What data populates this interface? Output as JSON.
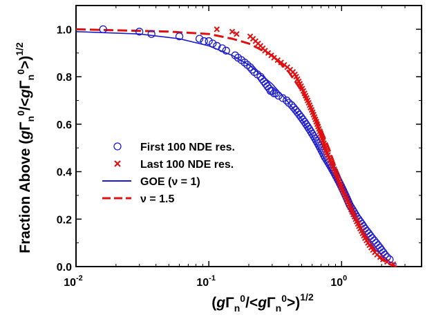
{
  "chart_data": {
    "type": "scatter",
    "x_scale": "log",
    "xlim": [
      0.01,
      4.0
    ],
    "ylim": [
      0.0,
      1.1
    ],
    "xlabel": "(gΓn0/<gΓn0>)1/2",
    "ylabel": "Fraction Above (gΓn0/<gΓn0>)1/2",
    "x_ticks": [
      {
        "value": 0.01,
        "base": "10",
        "exp": "-2"
      },
      {
        "value": 0.1,
        "base": "10",
        "exp": "-1"
      },
      {
        "value": 1.0,
        "base": "10",
        "exp": "0"
      }
    ],
    "y_ticks": [
      "0.0",
      "0.2",
      "0.4",
      "0.6",
      "0.8",
      "1.0"
    ],
    "legend_position": "center-left",
    "series": [
      {
        "name": "First 100 NDE res.",
        "marker": "circle",
        "color": "#1a1acc",
        "points": [
          [
            0.016,
            1.0
          ],
          [
            0.03,
            0.99
          ],
          [
            0.037,
            0.98
          ],
          [
            0.06,
            0.97
          ],
          [
            0.085,
            0.96
          ],
          [
            0.092,
            0.95
          ],
          [
            0.1,
            0.95
          ],
          [
            0.107,
            0.94
          ],
          [
            0.115,
            0.93
          ],
          [
            0.126,
            0.92
          ],
          [
            0.135,
            0.91
          ],
          [
            0.158,
            0.89
          ],
          [
            0.166,
            0.88
          ],
          [
            0.176,
            0.87
          ],
          [
            0.186,
            0.86
          ],
          [
            0.195,
            0.85
          ],
          [
            0.205,
            0.84
          ],
          [
            0.212,
            0.83
          ],
          [
            0.22,
            0.82
          ],
          [
            0.232,
            0.81
          ],
          [
            0.245,
            0.8
          ],
          [
            0.252,
            0.79
          ],
          [
            0.26,
            0.78
          ],
          [
            0.268,
            0.77
          ],
          [
            0.276,
            0.76
          ],
          [
            0.285,
            0.75
          ],
          [
            0.292,
            0.74
          ],
          [
            0.3,
            0.74
          ],
          [
            0.31,
            0.73
          ],
          [
            0.32,
            0.73
          ],
          [
            0.335,
            0.72
          ],
          [
            0.36,
            0.71
          ],
          [
            0.385,
            0.7
          ],
          [
            0.4,
            0.69
          ],
          [
            0.42,
            0.68
          ],
          [
            0.435,
            0.67
          ],
          [
            0.45,
            0.66
          ],
          [
            0.465,
            0.65
          ],
          [
            0.48,
            0.64
          ],
          [
            0.495,
            0.63
          ],
          [
            0.51,
            0.62
          ],
          [
            0.525,
            0.61
          ],
          [
            0.54,
            0.6
          ],
          [
            0.555,
            0.59
          ],
          [
            0.57,
            0.58
          ],
          [
            0.585,
            0.57
          ],
          [
            0.6,
            0.56
          ],
          [
            0.615,
            0.55
          ],
          [
            0.63,
            0.54
          ],
          [
            0.645,
            0.53
          ],
          [
            0.66,
            0.52
          ],
          [
            0.675,
            0.51
          ],
          [
            0.69,
            0.5
          ],
          [
            0.705,
            0.49
          ],
          [
            0.72,
            0.48
          ],
          [
            0.735,
            0.47
          ],
          [
            0.75,
            0.46
          ],
          [
            0.77,
            0.45
          ],
          [
            0.79,
            0.44
          ],
          [
            0.81,
            0.43
          ],
          [
            0.83,
            0.42
          ],
          [
            0.85,
            0.41
          ],
          [
            0.87,
            0.4
          ],
          [
            0.89,
            0.39
          ],
          [
            0.91,
            0.38
          ],
          [
            0.93,
            0.37
          ],
          [
            0.95,
            0.36
          ],
          [
            0.97,
            0.35
          ],
          [
            0.99,
            0.34
          ],
          [
            1.01,
            0.33
          ],
          [
            1.03,
            0.32
          ],
          [
            1.05,
            0.31
          ],
          [
            1.07,
            0.3
          ],
          [
            1.09,
            0.29
          ],
          [
            1.11,
            0.28
          ],
          [
            1.13,
            0.27
          ],
          [
            1.15,
            0.26
          ],
          [
            1.18,
            0.25
          ],
          [
            1.21,
            0.24
          ],
          [
            1.24,
            0.23
          ],
          [
            1.27,
            0.22
          ],
          [
            1.3,
            0.21
          ],
          [
            1.34,
            0.2
          ],
          [
            1.38,
            0.19
          ],
          [
            1.42,
            0.18
          ],
          [
            1.46,
            0.17
          ],
          [
            1.5,
            0.16
          ],
          [
            1.55,
            0.15
          ],
          [
            1.6,
            0.14
          ],
          [
            1.65,
            0.13
          ],
          [
            1.7,
            0.12
          ],
          [
            1.76,
            0.11
          ],
          [
            1.82,
            0.1
          ],
          [
            1.88,
            0.09
          ],
          [
            1.94,
            0.08
          ],
          [
            2.0,
            0.07
          ],
          [
            2.06,
            0.06
          ],
          [
            2.12,
            0.05
          ],
          [
            2.2,
            0.04
          ],
          [
            2.3,
            0.03
          ]
        ]
      },
      {
        "name": "Last 100 NDE res.",
        "marker": "x",
        "color": "#e01010",
        "points": [
          [
            0.115,
            1.0
          ],
          [
            0.15,
            0.99
          ],
          [
            0.162,
            0.98
          ],
          [
            0.205,
            0.97
          ],
          [
            0.215,
            0.96
          ],
          [
            0.225,
            0.95
          ],
          [
            0.235,
            0.94
          ],
          [
            0.245,
            0.93
          ],
          [
            0.255,
            0.92
          ],
          [
            0.265,
            0.91
          ],
          [
            0.28,
            0.9
          ],
          [
            0.295,
            0.89
          ],
          [
            0.31,
            0.88
          ],
          [
            0.33,
            0.87
          ],
          [
            0.35,
            0.86
          ],
          [
            0.37,
            0.85
          ],
          [
            0.39,
            0.84
          ],
          [
            0.41,
            0.83
          ],
          [
            0.43,
            0.82
          ],
          [
            0.445,
            0.81
          ],
          [
            0.455,
            0.8
          ],
          [
            0.465,
            0.79
          ],
          [
            0.475,
            0.78
          ],
          [
            0.485,
            0.77
          ],
          [
            0.495,
            0.76
          ],
          [
            0.505,
            0.75
          ],
          [
            0.515,
            0.74
          ],
          [
            0.525,
            0.73
          ],
          [
            0.535,
            0.72
          ],
          [
            0.545,
            0.71
          ],
          [
            0.555,
            0.7
          ],
          [
            0.565,
            0.69
          ],
          [
            0.575,
            0.68
          ],
          [
            0.585,
            0.67
          ],
          [
            0.595,
            0.66
          ],
          [
            0.605,
            0.65
          ],
          [
            0.615,
            0.64
          ],
          [
            0.625,
            0.63
          ],
          [
            0.635,
            0.62
          ],
          [
            0.645,
            0.61
          ],
          [
            0.655,
            0.6
          ],
          [
            0.665,
            0.59
          ],
          [
            0.675,
            0.58
          ],
          [
            0.685,
            0.57
          ],
          [
            0.695,
            0.56
          ],
          [
            0.705,
            0.55
          ],
          [
            0.715,
            0.54
          ],
          [
            0.725,
            0.53
          ],
          [
            0.735,
            0.52
          ],
          [
            0.745,
            0.51
          ],
          [
            0.755,
            0.5
          ],
          [
            0.765,
            0.49
          ],
          [
            0.775,
            0.48
          ],
          [
            0.79,
            0.47
          ],
          [
            0.805,
            0.46
          ],
          [
            0.82,
            0.45
          ],
          [
            0.835,
            0.44
          ],
          [
            0.85,
            0.43
          ],
          [
            0.865,
            0.42
          ],
          [
            0.88,
            0.41
          ],
          [
            0.895,
            0.4
          ],
          [
            0.91,
            0.39
          ],
          [
            0.925,
            0.38
          ],
          [
            0.94,
            0.37
          ],
          [
            0.955,
            0.36
          ],
          [
            0.97,
            0.35
          ],
          [
            0.985,
            0.34
          ],
          [
            1.0,
            0.33
          ],
          [
            1.02,
            0.32
          ],
          [
            1.04,
            0.31
          ],
          [
            1.06,
            0.3
          ],
          [
            1.08,
            0.29
          ],
          [
            1.1,
            0.28
          ],
          [
            1.12,
            0.27
          ],
          [
            1.14,
            0.26
          ],
          [
            1.16,
            0.25
          ],
          [
            1.18,
            0.24
          ],
          [
            1.2,
            0.23
          ],
          [
            1.225,
            0.22
          ],
          [
            1.25,
            0.21
          ],
          [
            1.275,
            0.2
          ],
          [
            1.3,
            0.19
          ],
          [
            1.325,
            0.18
          ],
          [
            1.35,
            0.17
          ],
          [
            1.38,
            0.16
          ],
          [
            1.41,
            0.15
          ],
          [
            1.44,
            0.14
          ],
          [
            1.47,
            0.13
          ],
          [
            1.5,
            0.12
          ],
          [
            1.54,
            0.11
          ],
          [
            1.58,
            0.1
          ],
          [
            1.62,
            0.09
          ],
          [
            1.67,
            0.08
          ],
          [
            1.72,
            0.07
          ],
          [
            1.78,
            0.06
          ],
          [
            1.85,
            0.05
          ],
          [
            1.95,
            0.04
          ],
          [
            2.05,
            0.03
          ],
          [
            2.2,
            0.02
          ],
          [
            2.45,
            0.01
          ]
        ]
      },
      {
        "name": "GOE (ν = 1)",
        "marker": "line",
        "line_style": "solid",
        "color": "#1a1acc",
        "points": [
          [
            0.01,
            0.99
          ],
          [
            0.03,
            0.98
          ],
          [
            0.06,
            0.96
          ],
          [
            0.1,
            0.93
          ],
          [
            0.15,
            0.89
          ],
          [
            0.2,
            0.85
          ],
          [
            0.3,
            0.77
          ],
          [
            0.4,
            0.69
          ],
          [
            0.5,
            0.62
          ],
          [
            0.6,
            0.55
          ],
          [
            0.7,
            0.48
          ],
          [
            0.8,
            0.42
          ],
          [
            0.9,
            0.37
          ],
          [
            1.0,
            0.32
          ],
          [
            1.2,
            0.23
          ],
          [
            1.4,
            0.16
          ],
          [
            1.6,
            0.11
          ],
          [
            1.8,
            0.07
          ],
          [
            2.0,
            0.05
          ],
          [
            2.3,
            0.02
          ],
          [
            2.6,
            0.01
          ]
        ]
      },
      {
        "name": "ν = 1.5",
        "marker": "line",
        "line_style": "dashed",
        "color": "#e01010",
        "points": [
          [
            0.01,
            1.0
          ],
          [
            0.05,
            0.99
          ],
          [
            0.1,
            0.98
          ],
          [
            0.15,
            0.96
          ],
          [
            0.2,
            0.94
          ],
          [
            0.3,
            0.89
          ],
          [
            0.4,
            0.82
          ],
          [
            0.5,
            0.74
          ],
          [
            0.6,
            0.66
          ],
          [
            0.7,
            0.58
          ],
          [
            0.8,
            0.5
          ],
          [
            0.9,
            0.42
          ],
          [
            1.0,
            0.36
          ],
          [
            1.2,
            0.25
          ],
          [
            1.4,
            0.16
          ],
          [
            1.6,
            0.1
          ],
          [
            1.8,
            0.06
          ],
          [
            2.0,
            0.03
          ],
          [
            2.3,
            0.01
          ],
          [
            2.6,
            0.0
          ]
        ]
      }
    ]
  }
}
